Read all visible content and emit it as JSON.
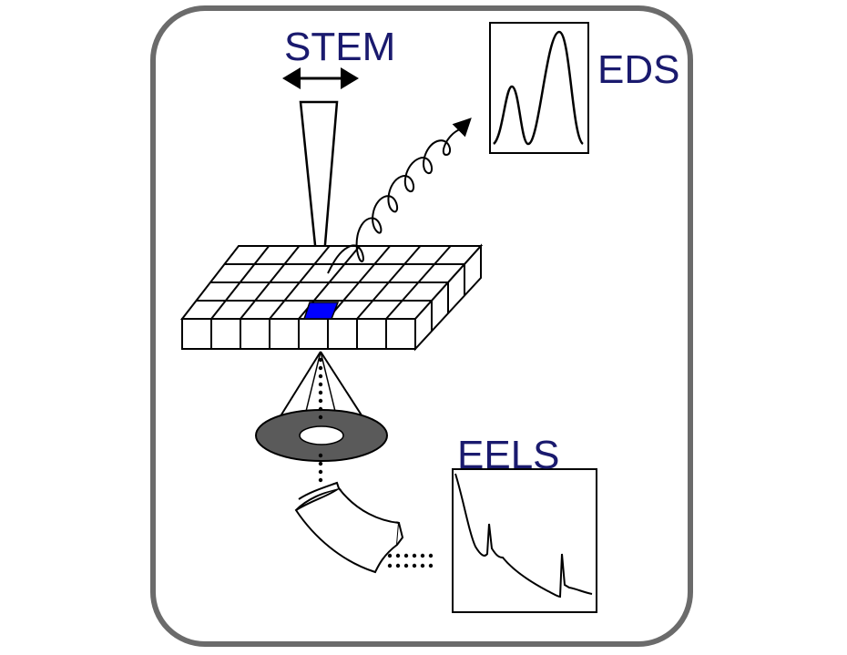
{
  "labels": {
    "stem": "STEM",
    "eds": "EDS",
    "eels": "EELS"
  },
  "colors": {
    "frame": "#6b6b6b",
    "label_text": "#1a1a6e",
    "probe_pixel": "#0000ff",
    "annular_detector": "#5a5a5a"
  }
}
